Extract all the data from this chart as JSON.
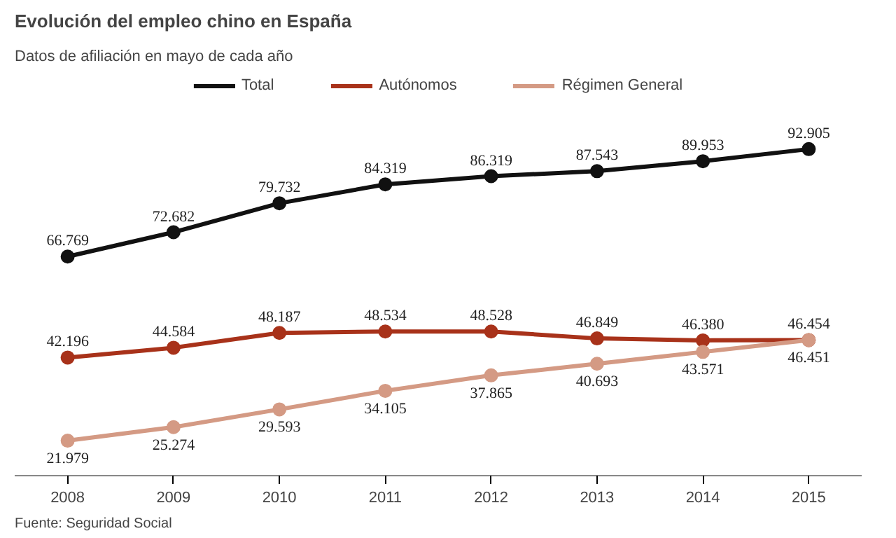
{
  "chart_data": {
    "type": "line",
    "title": "Evolución del empleo chino en España",
    "subtitle": "Datos de afiliación en mayo de cada año",
    "categories": [
      "2008",
      "2009",
      "2010",
      "2011",
      "2012",
      "2013",
      "2014",
      "2015"
    ],
    "series": [
      {
        "name": "Total",
        "color": "#111111",
        "values": [
          66769,
          72682,
          79732,
          84319,
          86319,
          87543,
          89953,
          92905
        ],
        "value_labels": [
          "66.769",
          "72.682",
          "79.732",
          "84.319",
          "86.319",
          "87.543",
          "89.953",
          "92.905"
        ]
      },
      {
        "name": "Autónomos",
        "color": "#a8321a",
        "values": [
          42196,
          44584,
          48187,
          48534,
          48528,
          46849,
          46380,
          46454
        ],
        "value_labels": [
          "42.196",
          "44.584",
          "48.187",
          "48.534",
          "48.528",
          "46.849",
          "46.380",
          "46.454"
        ]
      },
      {
        "name": "Régimen General",
        "color": "#d49a84",
        "values": [
          21979,
          25274,
          29593,
          34105,
          37865,
          40693,
          43571,
          46451
        ],
        "value_labels": [
          "21.979",
          "25.274",
          "29.593",
          "34.105",
          "37.865",
          "40.693",
          "43.571",
          "46.451"
        ]
      }
    ],
    "marker": "circle",
    "legend": "top",
    "grid": false,
    "tick_labels": "x",
    "annotations": [
      "Fuente: Seguridad Social"
    ]
  }
}
